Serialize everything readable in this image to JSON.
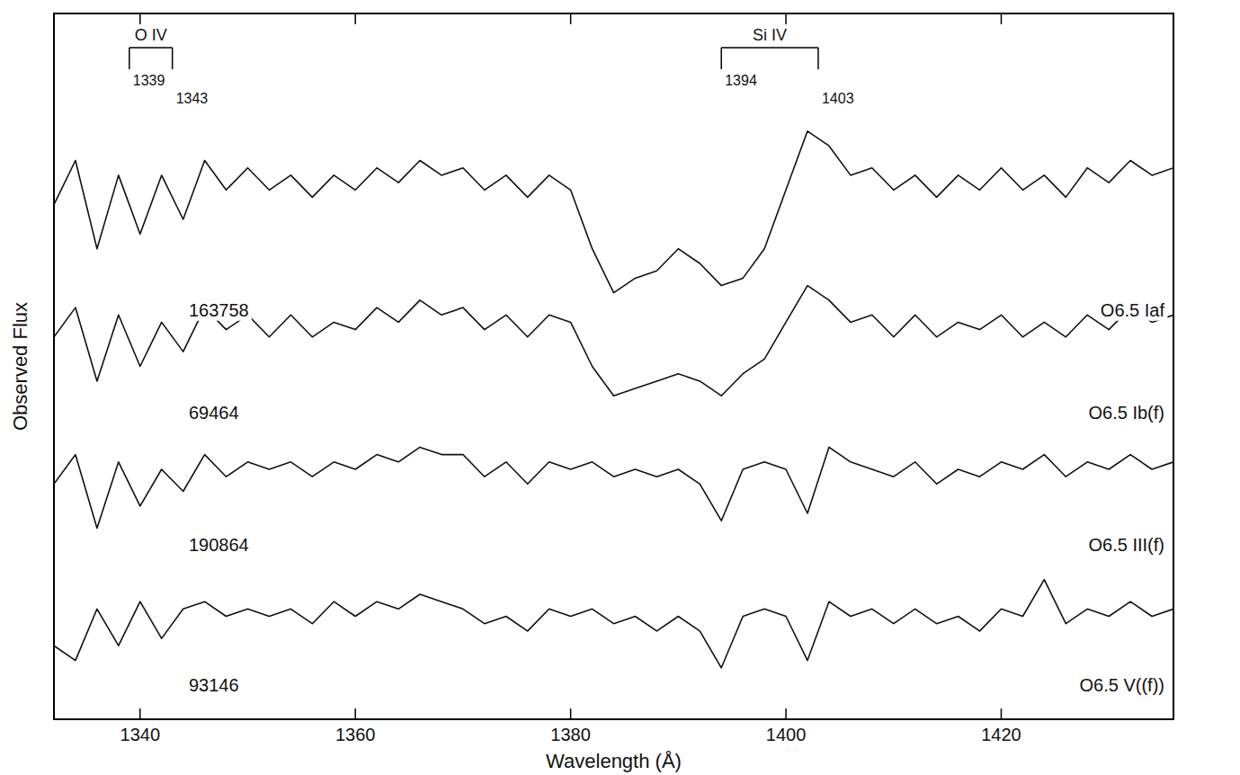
{
  "chart_data": {
    "type": "line",
    "x_label": "Wavelength (Å)",
    "y_label": "Observed Flux",
    "x": [
      1332,
      1334,
      1336,
      1338,
      1340,
      1342,
      1344,
      1346,
      1348,
      1350,
      1352,
      1354,
      1356,
      1358,
      1360,
      1362,
      1364,
      1366,
      1368,
      1370,
      1372,
      1374,
      1376,
      1378,
      1380,
      1382,
      1384,
      1386,
      1388,
      1390,
      1392,
      1394,
      1396,
      1398,
      1400,
      1402,
      1404,
      1406,
      1408,
      1410,
      1412,
      1414,
      1416,
      1418,
      1420,
      1422,
      1424,
      1426,
      1428,
      1430,
      1432,
      1434,
      1436
    ],
    "xlim": [
      1332,
      1436
    ],
    "xticks": [
      1340,
      1360,
      1380,
      1400,
      1420
    ],
    "ylim": [
      0,
      4.8
    ],
    "tick_labels": "x",
    "grid": false,
    "series": [
      {
        "name": "163758",
        "label": "O6.5 Iaf",
        "color": "#111111",
        "values": [
          3.5,
          3.8,
          3.2,
          3.7,
          3.3,
          3.7,
          3.4,
          3.8,
          3.6,
          3.75,
          3.6,
          3.7,
          3.55,
          3.7,
          3.6,
          3.75,
          3.65,
          3.8,
          3.7,
          3.75,
          3.6,
          3.7,
          3.55,
          3.7,
          3.6,
          3.2,
          2.9,
          3.0,
          3.05,
          3.2,
          3.1,
          2.95,
          3.0,
          3.2,
          3.6,
          4.0,
          3.9,
          3.7,
          3.75,
          3.6,
          3.7,
          3.55,
          3.7,
          3.6,
          3.75,
          3.6,
          3.7,
          3.55,
          3.75,
          3.65,
          3.8,
          3.7,
          3.75
        ]
      },
      {
        "name": "69464",
        "label": "O6.5 Ib(f)",
        "color": "#111111",
        "values": [
          2.6,
          2.8,
          2.3,
          2.75,
          2.4,
          2.7,
          2.5,
          2.8,
          2.65,
          2.75,
          2.6,
          2.75,
          2.6,
          2.7,
          2.65,
          2.8,
          2.7,
          2.85,
          2.75,
          2.8,
          2.65,
          2.75,
          2.6,
          2.75,
          2.7,
          2.4,
          2.2,
          2.25,
          2.3,
          2.35,
          2.3,
          2.2,
          2.35,
          2.45,
          2.7,
          2.95,
          2.85,
          2.7,
          2.75,
          2.6,
          2.75,
          2.6,
          2.7,
          2.65,
          2.75,
          2.6,
          2.7,
          2.6,
          2.75,
          2.65,
          2.8,
          2.7,
          2.75
        ]
      },
      {
        "name": "190864",
        "label": "O6.5 III(f)",
        "color": "#111111",
        "values": [
          1.6,
          1.8,
          1.3,
          1.75,
          1.45,
          1.7,
          1.55,
          1.8,
          1.65,
          1.75,
          1.7,
          1.75,
          1.65,
          1.75,
          1.7,
          1.8,
          1.75,
          1.85,
          1.8,
          1.8,
          1.65,
          1.75,
          1.6,
          1.75,
          1.7,
          1.75,
          1.65,
          1.7,
          1.65,
          1.7,
          1.6,
          1.35,
          1.7,
          1.75,
          1.7,
          1.4,
          1.85,
          1.75,
          1.7,
          1.65,
          1.75,
          1.6,
          1.7,
          1.65,
          1.75,
          1.7,
          1.8,
          1.65,
          1.75,
          1.7,
          1.8,
          1.7,
          1.75
        ]
      },
      {
        "name": "93146",
        "label": "O6.5 V((f))",
        "color": "#111111",
        "values": [
          0.5,
          0.4,
          0.75,
          0.5,
          0.8,
          0.55,
          0.75,
          0.8,
          0.7,
          0.75,
          0.7,
          0.75,
          0.65,
          0.8,
          0.7,
          0.8,
          0.75,
          0.85,
          0.8,
          0.75,
          0.65,
          0.7,
          0.6,
          0.75,
          0.7,
          0.75,
          0.65,
          0.7,
          0.6,
          0.7,
          0.6,
          0.35,
          0.7,
          0.75,
          0.7,
          0.4,
          0.8,
          0.7,
          0.75,
          0.65,
          0.75,
          0.65,
          0.7,
          0.6,
          0.75,
          0.7,
          0.95,
          0.65,
          0.75,
          0.7,
          0.8,
          0.7,
          0.75
        ]
      }
    ],
    "annotations": [
      {
        "label": "O IV",
        "lines": [
          1339,
          1343
        ]
      },
      {
        "label": "Si IV",
        "lines": [
          1394,
          1403
        ]
      }
    ]
  }
}
